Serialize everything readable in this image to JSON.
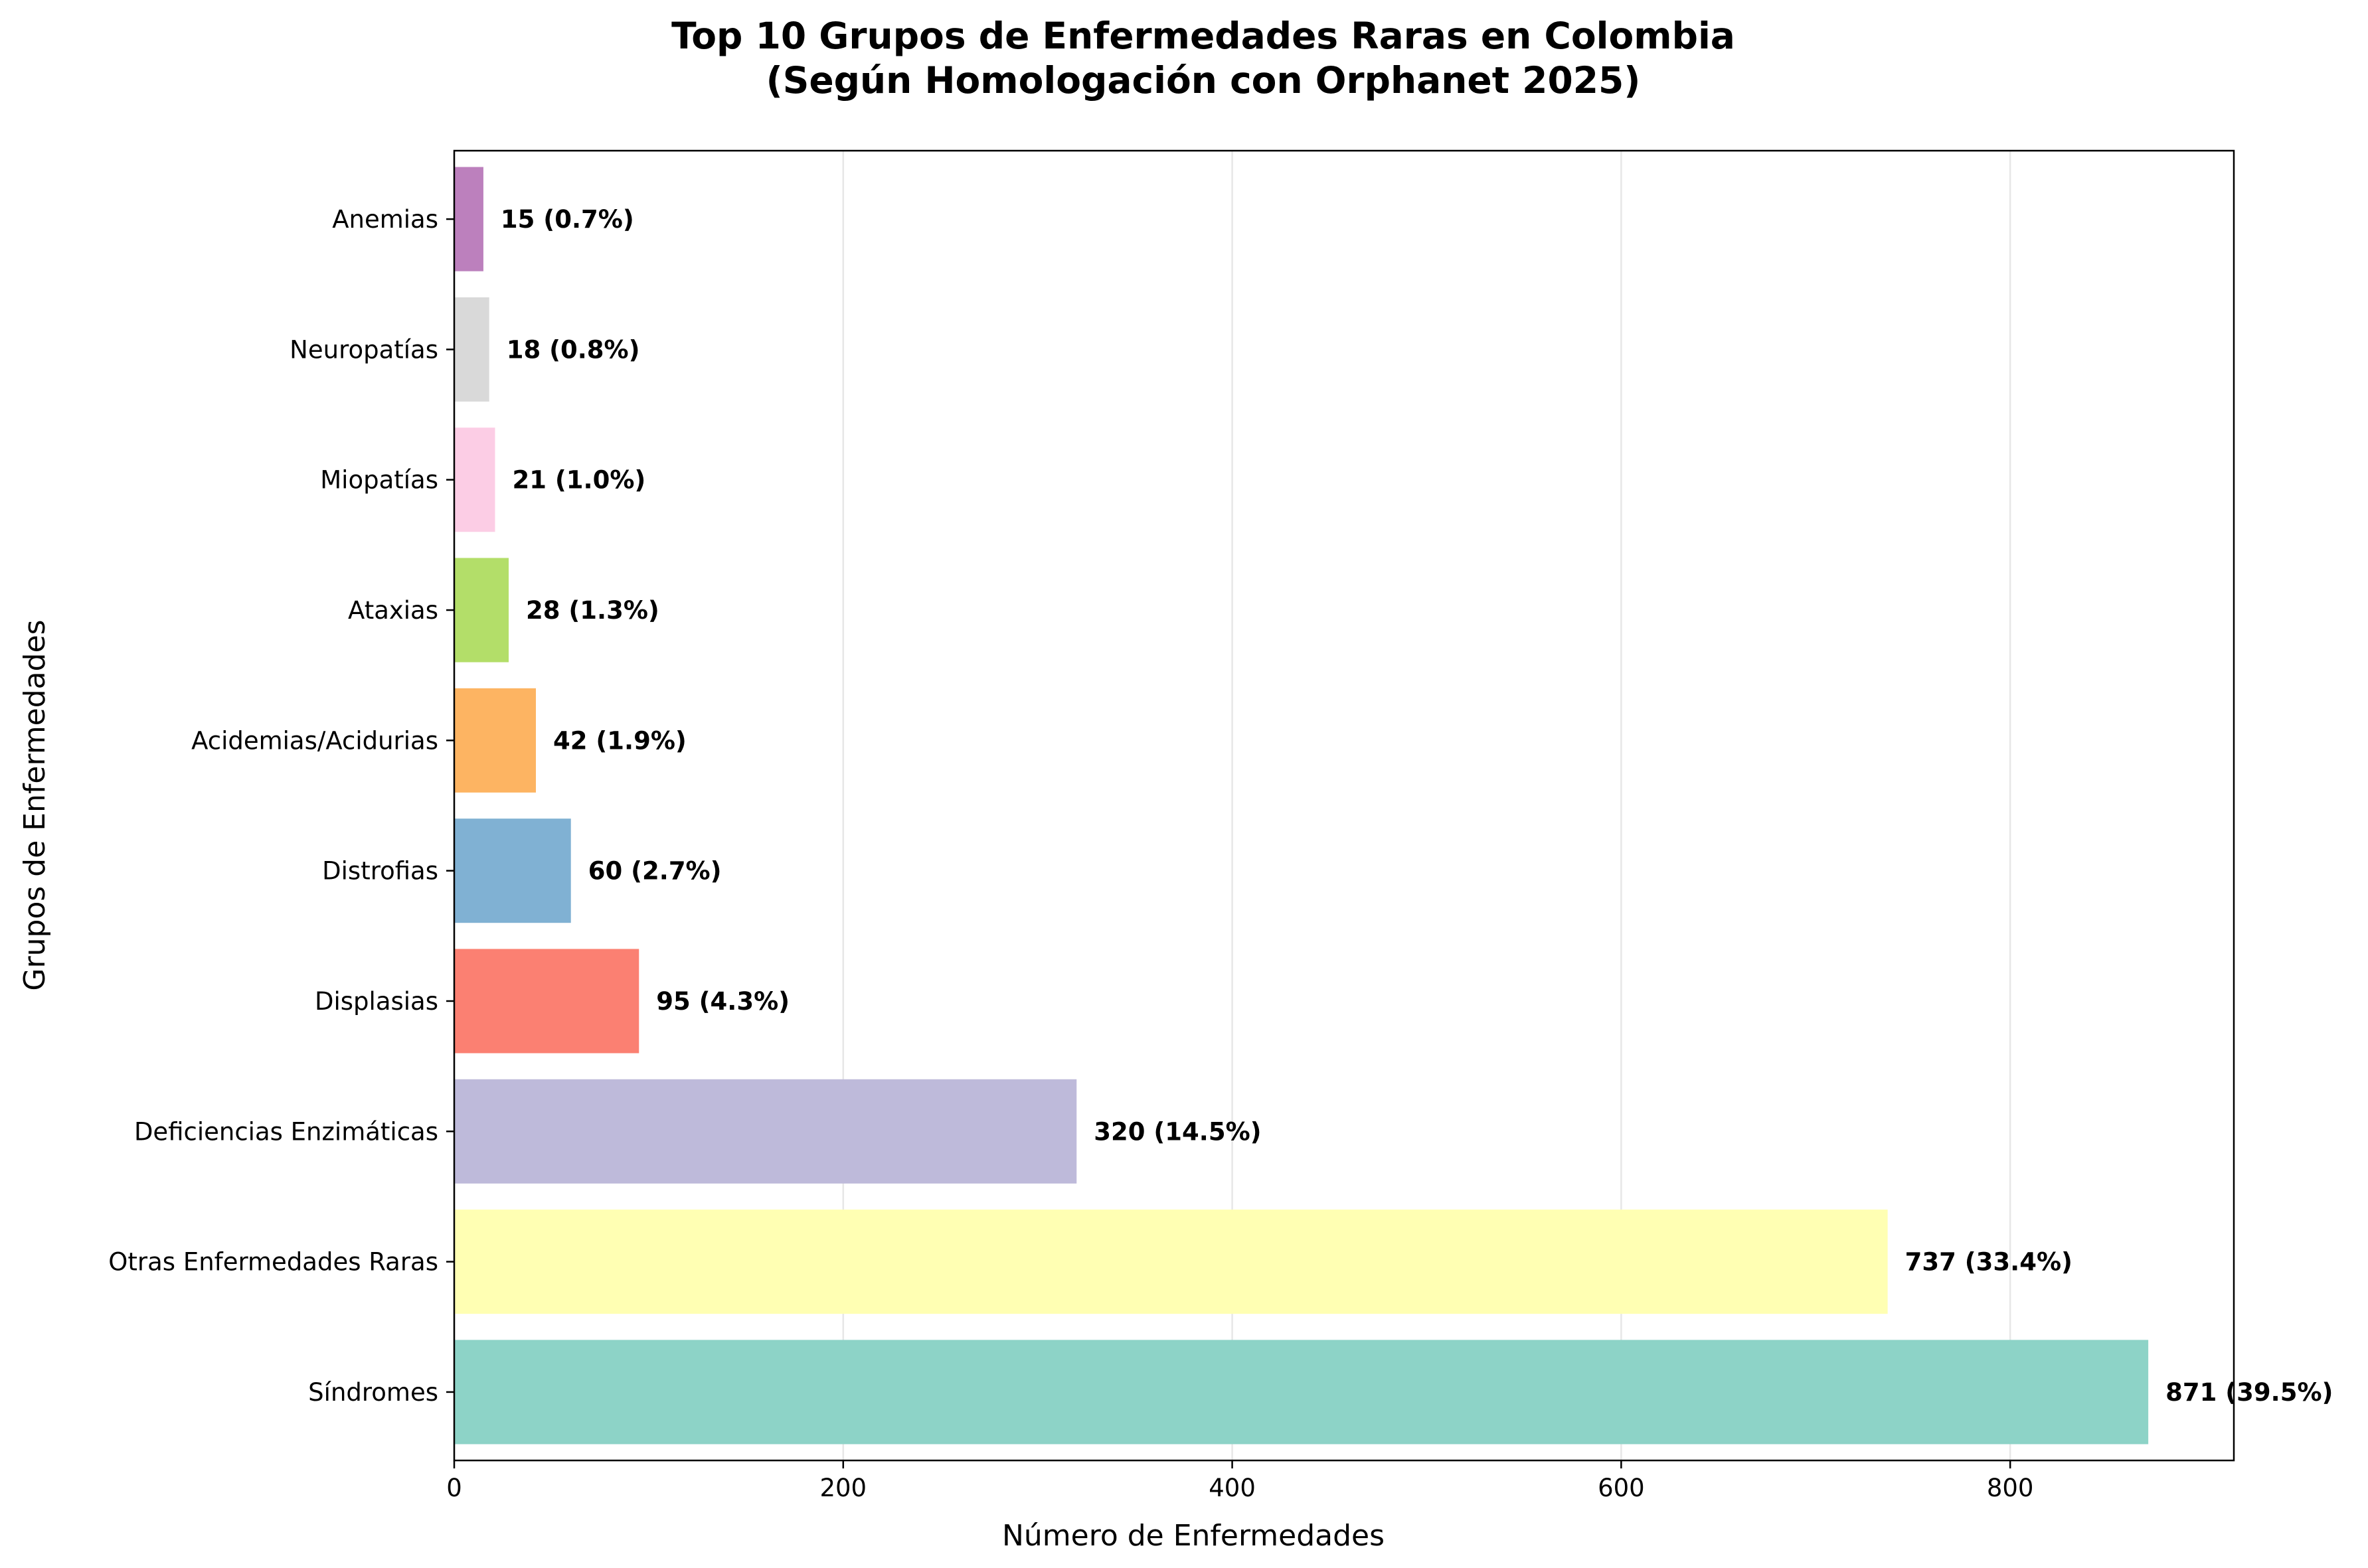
{
  "chart_data": {
    "type": "bar",
    "orientation": "horizontal",
    "title": "Top 10 Grupos de Enfermedades Raras en Colombia",
    "subtitle": "(Según Homologación con Orphanet 2025)",
    "xlabel": "Número de Enfermedades",
    "ylabel": "Grupos de Enfermedades",
    "xlim": [
      0,
      915
    ],
    "x_ticks": [
      "0",
      "200",
      "400",
      "600",
      "800"
    ],
    "grid": "x",
    "categories": [
      "Síndromes",
      "Otras Enfermedades Raras",
      "Deficiencias Enzimáticas",
      "Displasias",
      "Distrofias",
      "Acidemias/Acidurias",
      "Ataxias",
      "Miopatías",
      "Neuropatías",
      "Anemias"
    ],
    "values": [
      871,
      737,
      320,
      95,
      60,
      42,
      28,
      21,
      18,
      15
    ],
    "data_labels": [
      "871 (39.5%)",
      "737 (33.4%)",
      "320 (14.5%)",
      "95 (4.3%)",
      "60 (2.7%)",
      "42 (1.9%)",
      "28 (1.3%)",
      "21 (1.0%)",
      "18 (0.8%)",
      "15 (0.7%)"
    ],
    "colors": [
      "#8dd3c7",
      "#ffffb3",
      "#bebada",
      "#fb8072",
      "#80b1d3",
      "#fdb462",
      "#b3de69",
      "#fccde5",
      "#d9d9d9",
      "#bc80bd"
    ]
  }
}
